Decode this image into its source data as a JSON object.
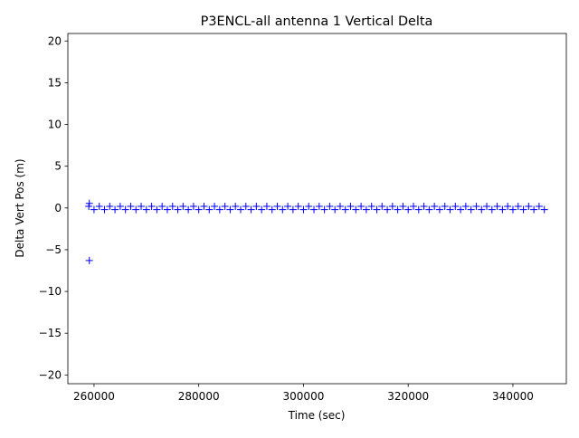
{
  "chart_data": {
    "type": "scatter",
    "title": "P3ENCL-all antenna 1 Vertical Delta",
    "x_label": "Time (sec)",
    "y_label": "Delta Vert Pos (m)",
    "color": "#0000ff",
    "x": [
      259100,
      259100,
      259000,
      260000,
      261000,
      262000,
      263000,
      264000,
      265000,
      266000,
      267000,
      268000,
      269000,
      270000,
      271000,
      272000,
      273000,
      274000,
      275000,
      276000,
      277000,
      278000,
      279000,
      280000,
      281000,
      282000,
      283000,
      284000,
      285000,
      286000,
      287000,
      288000,
      289000,
      290000,
      291000,
      292000,
      293000,
      294000,
      295000,
      296000,
      297000,
      298000,
      299000,
      300000,
      301000,
      302000,
      303000,
      304000,
      305000,
      306000,
      307000,
      308000,
      309000,
      310000,
      311000,
      312000,
      313000,
      314000,
      315000,
      316000,
      317000,
      318000,
      319000,
      320000,
      321000,
      322000,
      323000,
      324000,
      325000,
      326000,
      327000,
      328000,
      329000,
      330000,
      331000,
      332000,
      333000,
      334000,
      335000,
      336000,
      337000,
      338000,
      339000,
      340000,
      341000,
      342000,
      343000,
      344000,
      345000,
      346000
    ],
    "y": [
      -6.3,
      0.55,
      0.2,
      -0.2,
      0.2,
      -0.2,
      0.2,
      -0.2,
      0.2,
      -0.2,
      0.2,
      -0.2,
      0.2,
      -0.2,
      0.2,
      -0.2,
      0.2,
      -0.2,
      0.2,
      -0.2,
      0.2,
      -0.2,
      0.2,
      -0.2,
      0.2,
      -0.2,
      0.2,
      -0.2,
      0.2,
      -0.2,
      0.2,
      -0.2,
      0.2,
      -0.2,
      0.2,
      -0.2,
      0.2,
      -0.2,
      0.2,
      -0.2,
      0.2,
      -0.2,
      0.2,
      -0.2,
      0.2,
      -0.2,
      0.2,
      -0.2,
      0.2,
      -0.2,
      0.2,
      -0.2,
      0.2,
      -0.2,
      0.2,
      -0.2,
      0.2,
      -0.2,
      0.2,
      -0.2,
      0.2,
      -0.2,
      0.2,
      -0.2,
      0.2,
      -0.2,
      0.2,
      -0.2,
      0.2,
      -0.2,
      0.2,
      -0.2,
      0.2,
      -0.2,
      0.2,
      -0.2,
      0.2,
      -0.2,
      0.2,
      -0.2,
      0.2,
      -0.2,
      0.2,
      -0.2,
      0.2,
      -0.2,
      0.2,
      -0.2,
      0.2,
      -0.2
    ],
    "xlim": [
      255000,
      350200
    ],
    "ylim": [
      -21.05,
      20.9
    ],
    "xticks": [
      260000,
      280000,
      300000,
      320000,
      340000
    ],
    "yticks": [
      {
        "value": -20,
        "label": "−20"
      },
      {
        "value": -15,
        "label": "−15"
      },
      {
        "value": -10,
        "label": "−10"
      },
      {
        "value": -5,
        "label": "−5"
      },
      0,
      5,
      10,
      15,
      20
    ]
  }
}
